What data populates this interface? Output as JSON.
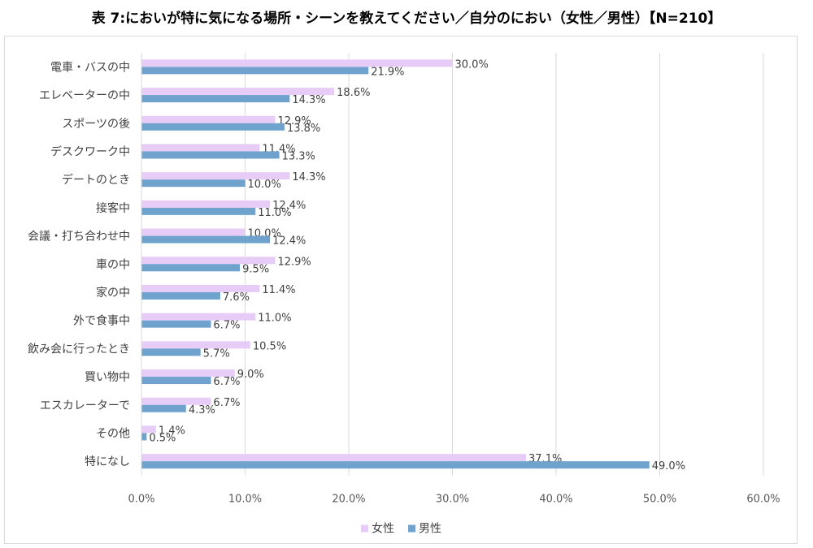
{
  "title": "表 7:においが特に気になる場所・シーンを教えてください／自分のにおい（女性／男性）【N=210】",
  "colors": {
    "female": "#e8ccf8",
    "male": "#6fa3ce",
    "grid": "#d9d9d9"
  },
  "chart_data": {
    "type": "bar",
    "orientation": "horizontal",
    "categories": [
      "電車・バスの中",
      "エレベーターの中",
      "スポーツの後",
      "デスクワーク中",
      "デートのとき",
      "接客中",
      "会議・打ち合わせ中",
      "車の中",
      "家の中",
      "外で食事中",
      "飲み会に行ったとき",
      "買い物中",
      "エスカレーターで",
      "その他",
      "特になし"
    ],
    "series": [
      {
        "name": "女性",
        "values": [
          30.0,
          18.6,
          12.9,
          11.4,
          14.3,
          12.4,
          10.0,
          12.9,
          11.4,
          11.0,
          10.5,
          9.0,
          6.7,
          1.4,
          37.1
        ],
        "labels": [
          "30.0%",
          "18.6%",
          "12.9%",
          "11.4%",
          "14.3%",
          "12.4%",
          "10.0%",
          "12.9%",
          "11.4%",
          "11.0%",
          "10.5%",
          "9.0%",
          "6.7%",
          "1.4%",
          "37.1%"
        ]
      },
      {
        "name": "男性",
        "values": [
          21.9,
          14.3,
          13.8,
          13.3,
          10.0,
          11.0,
          12.4,
          9.5,
          7.6,
          6.7,
          5.7,
          6.7,
          4.3,
          0.5,
          49.0
        ],
        "labels": [
          "21.9%",
          "14.3%",
          "13.8%",
          "13.3%",
          "10.0%",
          "11.0%",
          "12.4%",
          "9.5%",
          "7.6%",
          "6.7%",
          "5.7%",
          "6.7%",
          "4.3%",
          "0.5%",
          "49.0%"
        ]
      }
    ],
    "xlim": [
      0,
      60
    ],
    "ticks": [
      0,
      10,
      20,
      30,
      40,
      50,
      60
    ],
    "tick_labels": [
      "0.0%",
      "10.0%",
      "20.0%",
      "30.0%",
      "40.0%",
      "50.0%",
      "60.0%"
    ],
    "grid": true,
    "legend_position": "bottom"
  }
}
